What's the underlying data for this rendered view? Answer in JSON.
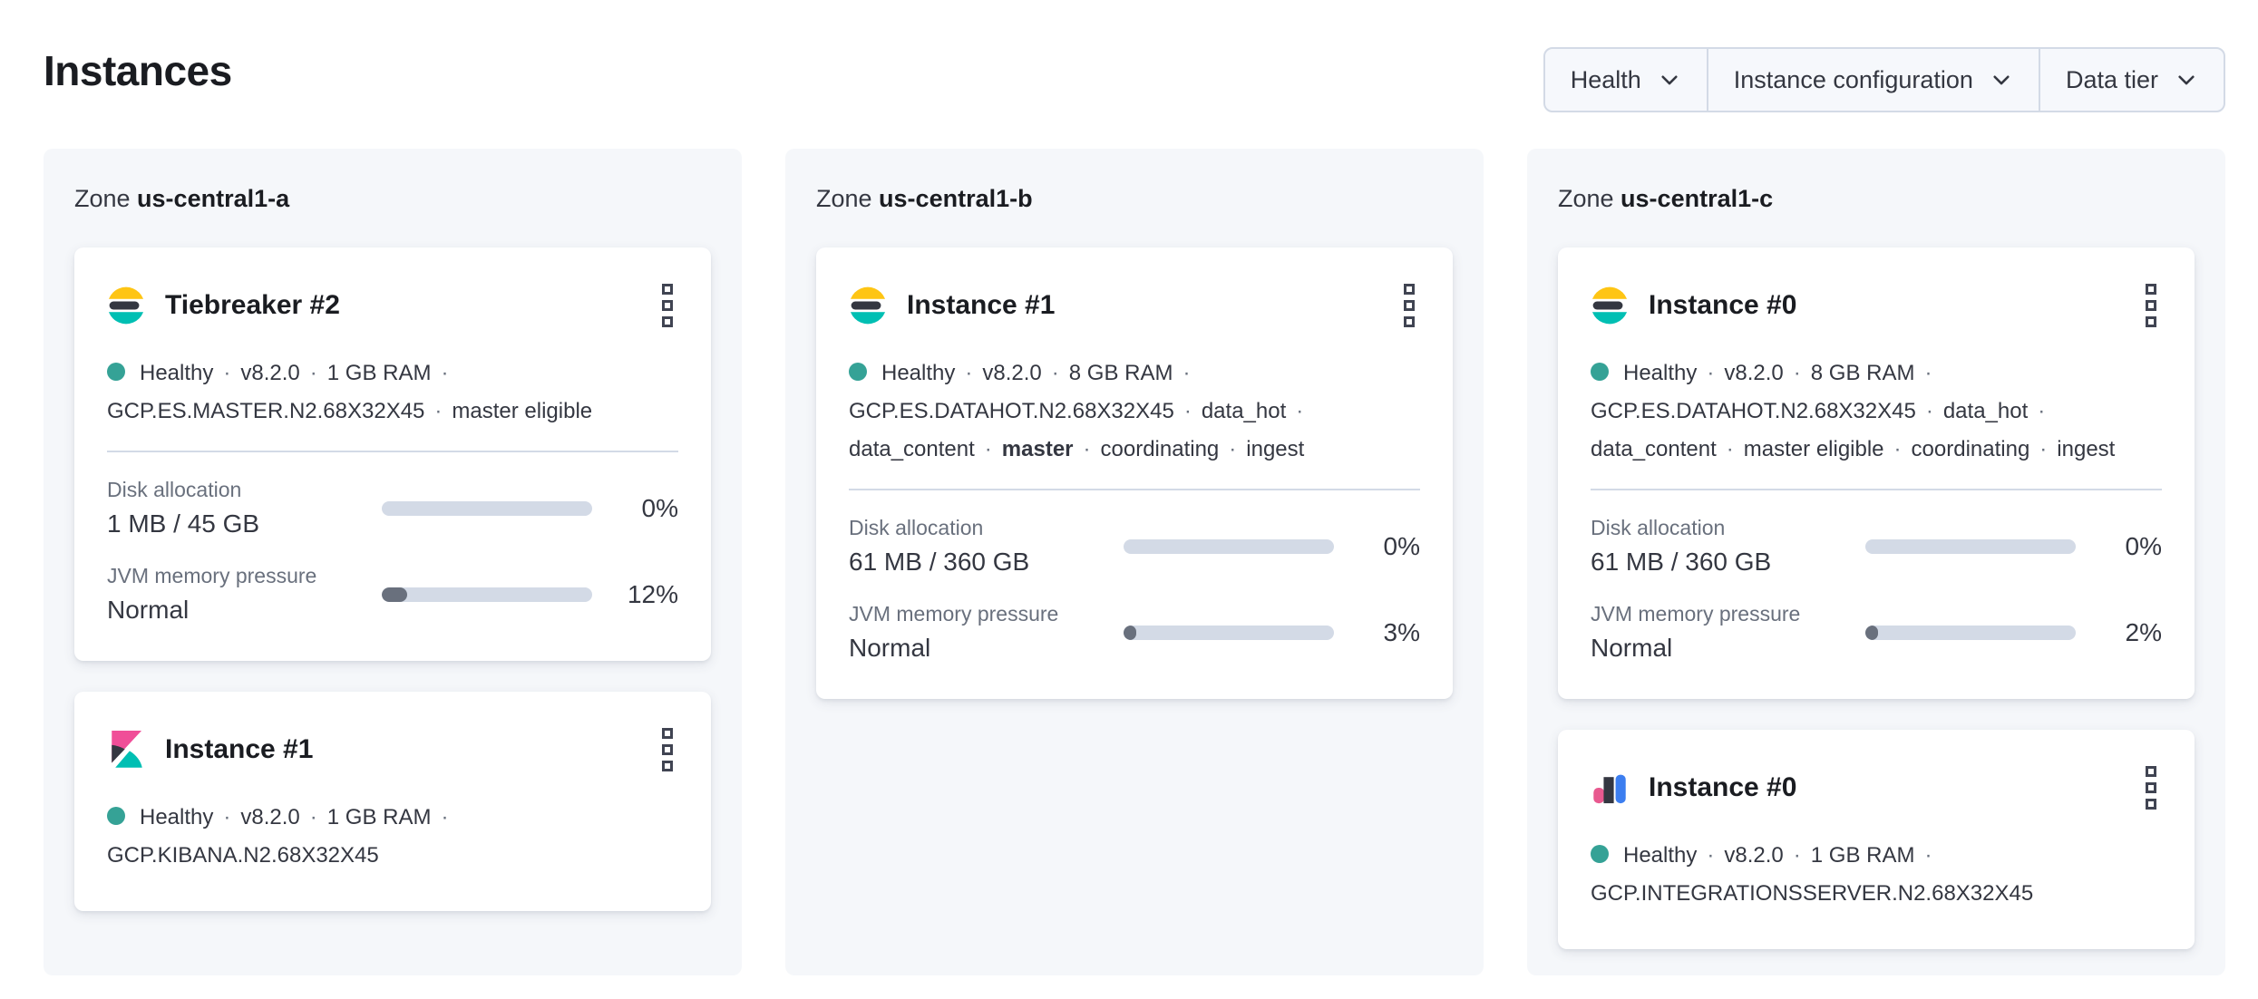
{
  "page": {
    "title": "Instances"
  },
  "filters": [
    {
      "label": "Health"
    },
    {
      "label": "Instance configuration"
    },
    {
      "label": "Data tier"
    }
  ],
  "colors": {
    "health_dot": "#35a296",
    "es_yellow": "#fec514",
    "es_dark": "#343741",
    "es_teal": "#00bfb3",
    "kibana_pink": "#f04e98",
    "kibana_dark": "#343741",
    "kibana_teal": "#00bfb3",
    "intserver_pink": "#e8598f",
    "intserver_dark": "#343741",
    "intserver_blue": "#3c7ef0",
    "bar_track": "#d3dae6",
    "bar_fill": "#69707d"
  },
  "zones": [
    {
      "label_prefix": "Zone",
      "name": "us-central1-a",
      "cards": [
        {
          "logo": "elasticsearch",
          "title": "Tiebreaker #2",
          "status_lines": [
            [
              "Healthy",
              "·",
              "v8.2.0",
              "·",
              "1 GB RAM",
              "·"
            ],
            [
              "GCP.ES.MASTER.N2.68X32X45",
              "·",
              "master eligible"
            ]
          ],
          "metrics": [
            {
              "label": "Disk allocation",
              "value": "1 MB / 45 GB",
              "percent": "0%",
              "fill": 0
            },
            {
              "label": "JVM memory pressure",
              "value": "Normal",
              "percent": "12%",
              "fill": 12
            }
          ]
        },
        {
          "logo": "kibana",
          "title": "Instance #1",
          "status_lines": [
            [
              "Healthy",
              "·",
              "v8.2.0",
              "·",
              "1 GB RAM",
              "·"
            ],
            [
              "GCP.KIBANA.N2.68X32X45"
            ]
          ],
          "metrics": []
        }
      ]
    },
    {
      "label_prefix": "Zone",
      "name": "us-central1-b",
      "cards": [
        {
          "logo": "elasticsearch",
          "title": "Instance #1",
          "status_lines": [
            [
              "Healthy",
              "·",
              "v8.2.0",
              "·",
              "8 GB RAM",
              "·"
            ],
            [
              "GCP.ES.DATAHOT.N2.68X32X45",
              "·",
              "data_hot",
              "·"
            ],
            [
              "data_content",
              "·",
              {
                "text": "master",
                "bold": true
              },
              "·",
              "coordinating",
              "·",
              "ingest"
            ]
          ],
          "metrics": [
            {
              "label": "Disk allocation",
              "value": "61 MB / 360 GB",
              "percent": "0%",
              "fill": 0
            },
            {
              "label": "JVM memory pressure",
              "value": "Normal",
              "percent": "3%",
              "fill": 3
            }
          ]
        }
      ]
    },
    {
      "label_prefix": "Zone",
      "name": "us-central1-c",
      "cards": [
        {
          "logo": "elasticsearch",
          "title": "Instance #0",
          "status_lines": [
            [
              "Healthy",
              "·",
              "v8.2.0",
              "·",
              "8 GB RAM",
              "·"
            ],
            [
              "GCP.ES.DATAHOT.N2.68X32X45",
              "·",
              "data_hot",
              "·"
            ],
            [
              "data_content",
              "·",
              "master eligible",
              "·",
              "coordinating",
              "·",
              "ingest"
            ]
          ],
          "metrics": [
            {
              "label": "Disk allocation",
              "value": "61 MB / 360 GB",
              "percent": "0%",
              "fill": 0
            },
            {
              "label": "JVM memory pressure",
              "value": "Normal",
              "percent": "2%",
              "fill": 2
            }
          ]
        },
        {
          "logo": "integrations-server",
          "title": "Instance #0",
          "status_lines": [
            [
              "Healthy",
              "·",
              "v8.2.0",
              "·",
              "1 GB RAM",
              "·"
            ],
            [
              "GCP.INTEGRATIONSSERVER.N2.68X32X45"
            ]
          ],
          "metrics": []
        }
      ]
    }
  ]
}
